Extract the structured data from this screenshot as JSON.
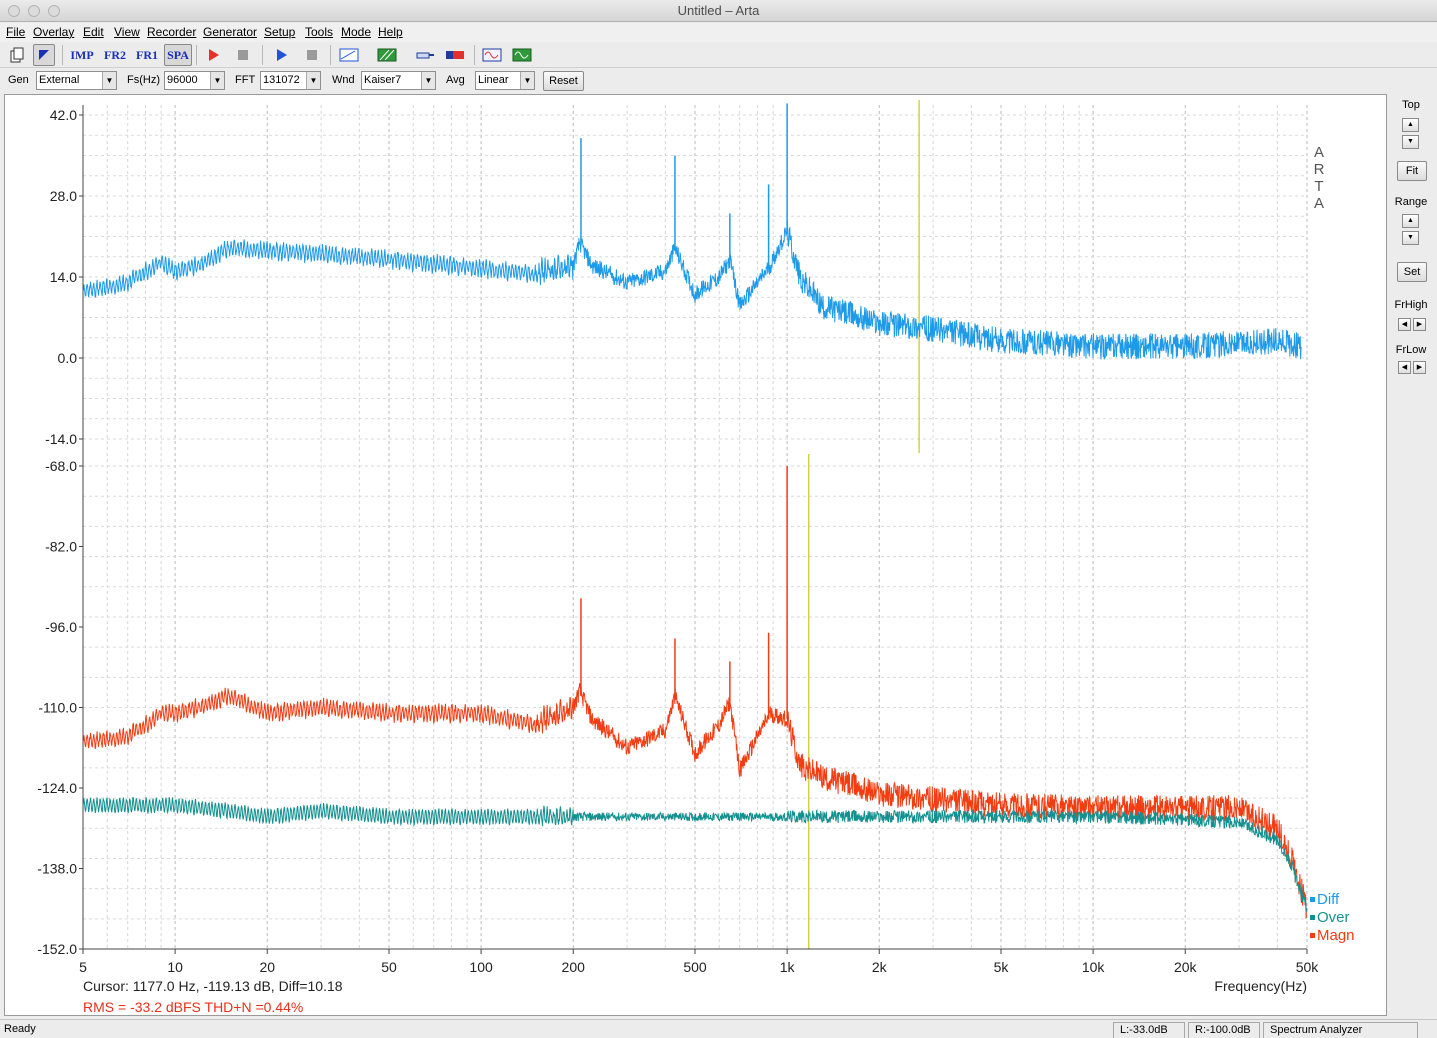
{
  "window": {
    "title": "Untitled – Arta"
  },
  "menu": [
    "File",
    "Overlay",
    "Edit",
    "View",
    "Recorder",
    "Generator",
    "Setup",
    "Tools",
    "Mode",
    "Help"
  ],
  "toolbar": {
    "imp": "IMP",
    "fr2": "FR2",
    "fr1": "FR1",
    "spa": "SPA"
  },
  "controls": {
    "gen_label": "Gen",
    "gen_value": "External",
    "fs_label": "Fs(Hz)",
    "fs_value": "96000",
    "fft_label": "FFT",
    "fft_value": "131072",
    "wnd_label": "Wnd",
    "wnd_value": "Kaiser7",
    "avg_label": "Avg",
    "avg_value": "Linear",
    "reset_label": "Reset"
  },
  "right_panel": {
    "top_label": "Top",
    "fit_label": "Fit",
    "range_label": "Range",
    "set_label": "Set",
    "frhigh_label": "FrHigh",
    "frlow_label": "FrLow"
  },
  "chart_data": {
    "type": "line",
    "xlabel": "Frequency(Hz)",
    "xscale": "log",
    "xlim": [
      5,
      50000
    ],
    "x_ticks": [
      5,
      10,
      20,
      50,
      100,
      200,
      500,
      1000,
      2000,
      5000,
      10000,
      20000,
      50000
    ],
    "x_tick_labels": [
      "5",
      "10",
      "20",
      "50",
      "100",
      "200",
      "500",
      "1k",
      "2k",
      "5k",
      "10k",
      "20k",
      "50k"
    ],
    "watermark": [
      "A",
      "R",
      "T",
      "A"
    ],
    "grid": true,
    "legend": {
      "placement": "bottom-right",
      "entries": [
        {
          "name": "Diff",
          "color": "#1e9ae8"
        },
        {
          "name": "Over",
          "color": "#159090"
        },
        {
          "name": "Magn",
          "color": "#f23c12"
        }
      ]
    },
    "top_panel": {
      "ylim": [
        -14,
        42
      ],
      "y_ticks": [
        42.0,
        28.0,
        14.0,
        0.0,
        -14.0
      ],
      "y_tick_labels": [
        "42.0",
        "28.0",
        "14.0",
        "0.0",
        "-14.0"
      ],
      "cursor_freq": 2700,
      "series": [
        {
          "name": "Diff",
          "color": "#1e9ae8",
          "x": [
            5,
            7,
            8,
            9,
            10,
            12,
            15,
            20,
            30,
            50,
            80,
            100,
            150,
            200,
            210,
            230,
            300,
            400,
            430,
            500,
            600,
            650,
            700,
            800,
            880,
            1000,
            1100,
            1300,
            2000,
            3000,
            5000,
            10000,
            20000,
            30000,
            40000,
            48000
          ],
          "y": [
            11.5,
            13,
            15,
            16.5,
            15,
            16,
            19,
            18.5,
            18,
            17,
            16,
            15.5,
            14.5,
            16,
            20,
            16,
            13,
            15,
            19,
            11,
            14,
            17,
            9,
            13,
            16,
            22,
            14,
            9,
            6,
            5,
            3,
            2,
            2,
            2.5,
            3,
            2
          ],
          "spikes": [
            {
              "x": 212,
              "y": 38
            },
            {
              "x": 430,
              "y": 35
            },
            {
              "x": 650,
              "y": 25
            },
            {
              "x": 870,
              "y": 30
            },
            {
              "x": 1000,
              "y": 44
            }
          ]
        }
      ]
    },
    "bottom_panel": {
      "ylim": [
        -152,
        -68
      ],
      "y_ticks": [
        -68.0,
        -82.0,
        -96.0,
        -110.0,
        -124.0,
        -138.0,
        -152.0
      ],
      "y_tick_labels": [
        "-68.0",
        "-82.0",
        "-96.0",
        "-110.0",
        "-124.0",
        "-138.0",
        "-152.0"
      ],
      "cursor_freq": 1177,
      "series": [
        {
          "name": "Magn",
          "color": "#f23c12",
          "x": [
            5,
            7,
            8,
            9,
            10,
            12,
            15,
            20,
            30,
            50,
            80,
            100,
            150,
            200,
            210,
            230,
            300,
            400,
            430,
            500,
            600,
            650,
            700,
            800,
            880,
            1000,
            1100,
            1300,
            2000,
            3000,
            5000,
            10000,
            20000,
            30000,
            40000,
            45000,
            50000
          ],
          "y": [
            -116,
            -115,
            -113,
            -111,
            -111,
            -110,
            -108,
            -111,
            -110,
            -111,
            -111,
            -111,
            -113,
            -110,
            -107,
            -112,
            -117,
            -114,
            -108,
            -118,
            -113,
            -109,
            -121,
            -115,
            -111,
            -112,
            -120,
            -122,
            -125,
            -126,
            -127,
            -127.5,
            -127.5,
            -127.5,
            -131,
            -137,
            -145
          ],
          "spikes": [
            {
              "x": 212,
              "y": -91
            },
            {
              "x": 430,
              "y": -98
            },
            {
              "x": 650,
              "y": -102
            },
            {
              "x": 870,
              "y": -97
            },
            {
              "x": 1000,
              "y": -68
            }
          ]
        },
        {
          "name": "Over",
          "color": "#159090",
          "x": [
            5,
            7,
            10,
            15,
            20,
            30,
            50,
            100,
            150,
            200,
            500,
            1000,
            2000,
            5000,
            10000,
            20000,
            30000,
            40000,
            45000,
            50000
          ],
          "y": [
            -127,
            -127,
            -127,
            -128,
            -129,
            -128,
            -129,
            -129,
            -129,
            -129,
            -129,
            -129,
            -129,
            -129,
            -129,
            -129.5,
            -130,
            -133,
            -138,
            -145
          ]
        }
      ]
    },
    "cursor_readout": "Cursor:   1177.0 Hz,  -119.13  dB,   Diff=10.18",
    "rms_readout": "RMS =   -33.2  dBFS   THD+N =0.44%"
  },
  "status": {
    "ready": "Ready",
    "left_level": "L:-33.0dB",
    "right_level": "R:-100.0dB",
    "mode": "Spectrum Analyzer"
  }
}
